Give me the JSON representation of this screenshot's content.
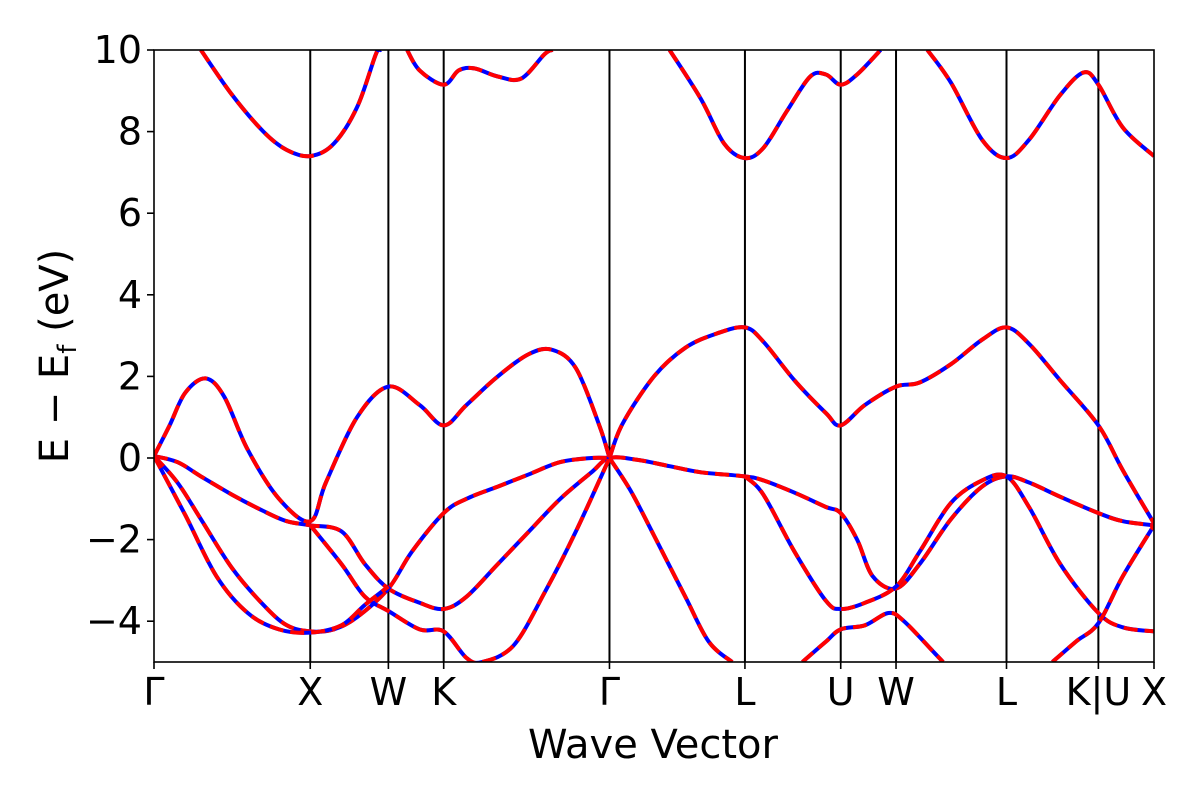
{
  "chart_data": {
    "type": "line",
    "title": "",
    "xlabel": "Wave Vector",
    "ylabel": "E − E",
    "ylabel_subscript": "f",
    "ylabel_unit": " (eV)",
    "ylim": [
      -5,
      10
    ],
    "yticks": [
      -4,
      -2,
      0,
      2,
      4,
      6,
      8,
      10
    ],
    "ytick_labels": [
      "−4",
      "−2",
      "0",
      "2",
      "4",
      "6",
      "8",
      "10"
    ],
    "xlim": [
      0,
      6.4
    ],
    "kpoints": [
      {
        "label": "Γ",
        "x": 0
      },
      {
        "label": "X",
        "x": 1.0
      },
      {
        "label": "W",
        "x": 1.5
      },
      {
        "label": "K",
        "x": 1.854
      },
      {
        "label": "Γ",
        "x": 2.915
      },
      {
        "label": "L",
        "x": 3.782
      },
      {
        "label": "U",
        "x": 4.395
      },
      {
        "label": "W",
        "x": 4.749
      },
      {
        "label": "L",
        "x": 5.456
      },
      {
        "label": "K|U",
        "x": 6.044
      },
      {
        "label": "X",
        "x": 6.4
      }
    ],
    "grid": false,
    "legend": "none",
    "colors": {
      "series_a": "#0000ff",
      "series_b": "#ff0000",
      "vlines": "#000000"
    },
    "series": [
      {
        "values": [
          [
            0,
            0.05
          ],
          [
            0.15,
            -0.1
          ],
          [
            0.3,
            -0.45
          ],
          [
            0.5,
            -0.9
          ],
          [
            0.7,
            -1.3
          ],
          [
            0.85,
            -1.55
          ],
          [
            1.0,
            -1.65
          ],
          [
            1.2,
            -1.8
          ],
          [
            1.35,
            -2.6
          ],
          [
            1.5,
            -3.2
          ],
          [
            1.7,
            -3.55
          ],
          [
            1.854,
            -3.7
          ],
          [
            2.0,
            -3.4
          ],
          [
            2.2,
            -2.6
          ],
          [
            2.4,
            -1.8
          ],
          [
            2.6,
            -1.0
          ],
          [
            2.8,
            -0.35
          ],
          [
            2.915,
            0.0
          ],
          [
            3.1,
            -0.05
          ],
          [
            3.3,
            -0.2
          ],
          [
            3.5,
            -0.35
          ],
          [
            3.782,
            -0.45
          ],
          [
            3.9,
            -0.55
          ],
          [
            4.1,
            -0.85
          ],
          [
            4.3,
            -1.2
          ],
          [
            4.395,
            -1.35
          ],
          [
            4.5,
            -2.0
          ],
          [
            4.6,
            -2.9
          ],
          [
            4.749,
            -3.2
          ],
          [
            4.9,
            -2.6
          ],
          [
            5.1,
            -1.5
          ],
          [
            5.3,
            -0.7
          ],
          [
            5.456,
            -0.45
          ],
          [
            5.6,
            -0.6
          ],
          [
            5.8,
            -0.95
          ],
          [
            6.044,
            -1.35
          ],
          [
            6.2,
            -1.55
          ],
          [
            6.4,
            -1.65
          ]
        ]
      },
      {
        "values": [
          [
            0,
            0.05
          ],
          [
            0.15,
            -0.6
          ],
          [
            0.3,
            -1.5
          ],
          [
            0.5,
            -2.7
          ],
          [
            0.7,
            -3.6
          ],
          [
            0.85,
            -4.1
          ],
          [
            1.0,
            -4.25
          ],
          [
            1.15,
            -4.2
          ],
          [
            1.3,
            -3.9
          ],
          [
            1.5,
            -3.2
          ],
          [
            1.65,
            -2.3
          ],
          [
            1.854,
            -1.35
          ],
          [
            2.0,
            -1.0
          ],
          [
            2.2,
            -0.7
          ],
          [
            2.4,
            -0.4
          ],
          [
            2.6,
            -0.1
          ],
          [
            2.8,
            0.0
          ],
          [
            2.915,
            0.0
          ]
        ]
      },
      {
        "values": [
          [
            0,
            0.05
          ],
          [
            0.1,
            0.8
          ],
          [
            0.2,
            1.6
          ],
          [
            0.33,
            1.95
          ],
          [
            0.45,
            1.5
          ],
          [
            0.6,
            0.2
          ],
          [
            0.8,
            -1.0
          ],
          [
            1.0,
            -1.55
          ],
          [
            1.1,
            -0.6
          ],
          [
            1.3,
            1.0
          ],
          [
            1.5,
            1.75
          ],
          [
            1.7,
            1.3
          ],
          [
            1.854,
            0.8
          ],
          [
            2.0,
            1.3
          ],
          [
            2.2,
            2.0
          ],
          [
            2.4,
            2.55
          ],
          [
            2.55,
            2.65
          ],
          [
            2.7,
            2.2
          ],
          [
            2.85,
            0.8
          ],
          [
            2.915,
            0.0
          ]
        ]
      },
      {
        "values": [
          [
            1.0,
            -1.65
          ],
          [
            1.2,
            -2.6
          ],
          [
            1.35,
            -3.4
          ],
          [
            1.5,
            -3.75
          ],
          [
            1.7,
            -4.2
          ],
          [
            1.854,
            -4.25
          ],
          [
            2.0,
            -4.9
          ],
          [
            2.1,
            -5.0
          ],
          [
            2.3,
            -4.6
          ],
          [
            2.5,
            -3.3
          ],
          [
            2.7,
            -1.8
          ],
          [
            2.915,
            0.0
          ]
        ]
      },
      {
        "values": [
          [
            0,
            0.05
          ],
          [
            0.2,
            -1.4
          ],
          [
            0.4,
            -2.9
          ],
          [
            0.6,
            -3.8
          ],
          [
            0.8,
            -4.2
          ],
          [
            1.0,
            -4.28
          ],
          [
            1.2,
            -4.1
          ],
          [
            1.35,
            -3.6
          ],
          [
            1.5,
            -3.15
          ]
        ]
      },
      {
        "values": [
          [
            2.915,
            0.0
          ],
          [
            3.0,
            0.85
          ],
          [
            3.2,
            2.0
          ],
          [
            3.4,
            2.7
          ],
          [
            3.6,
            3.05
          ],
          [
            3.782,
            3.2
          ],
          [
            3.9,
            2.85
          ],
          [
            4.1,
            1.9
          ],
          [
            4.3,
            1.1
          ],
          [
            4.395,
            0.8
          ],
          [
            4.55,
            1.3
          ],
          [
            4.749,
            1.75
          ],
          [
            4.9,
            1.85
          ],
          [
            5.1,
            2.3
          ],
          [
            5.3,
            2.9
          ],
          [
            5.456,
            3.2
          ],
          [
            5.6,
            2.8
          ],
          [
            5.8,
            1.9
          ],
          [
            6.044,
            0.8
          ],
          [
            6.2,
            -0.3
          ],
          [
            6.4,
            -1.6
          ]
        ]
      },
      {
        "values": [
          [
            2.915,
            0.0
          ],
          [
            3.05,
            -0.8
          ],
          [
            3.2,
            -1.9
          ],
          [
            3.4,
            -3.4
          ],
          [
            3.55,
            -4.5
          ],
          [
            3.7,
            -5.0
          ]
        ]
      },
      {
        "values": [
          [
            3.782,
            -0.45
          ],
          [
            3.9,
            -0.9
          ],
          [
            4.1,
            -2.3
          ],
          [
            4.3,
            -3.5
          ],
          [
            4.395,
            -3.7
          ],
          [
            4.55,
            -3.55
          ],
          [
            4.749,
            -3.15
          ],
          [
            4.9,
            -2.3
          ],
          [
            5.1,
            -1.1
          ],
          [
            5.3,
            -0.55
          ],
          [
            5.456,
            -0.45
          ],
          [
            5.6,
            -1.2
          ],
          [
            5.8,
            -2.6
          ],
          [
            6.044,
            -3.8
          ],
          [
            6.2,
            -4.15
          ],
          [
            6.4,
            -4.25
          ]
        ]
      },
      {
        "values": [
          [
            4.15,
            -5.0
          ],
          [
            4.3,
            -4.5
          ],
          [
            4.395,
            -4.2
          ],
          [
            4.55,
            -4.1
          ],
          [
            4.7,
            -3.8
          ],
          [
            4.8,
            -4.0
          ],
          [
            5.0,
            -4.8
          ],
          [
            5.05,
            -5.0
          ]
        ]
      },
      {
        "values": [
          [
            5.75,
            -5.0
          ],
          [
            5.9,
            -4.5
          ],
          [
            6.044,
            -4.05
          ],
          [
            6.2,
            -2.9
          ],
          [
            6.4,
            -1.65
          ]
        ]
      },
      {
        "values": [
          [
            0.3,
            10.0
          ],
          [
            0.5,
            8.9
          ],
          [
            0.7,
            8.0
          ],
          [
            0.85,
            7.55
          ],
          [
            1.0,
            7.4
          ],
          [
            1.15,
            7.7
          ],
          [
            1.3,
            8.6
          ],
          [
            1.42,
            9.9
          ],
          [
            1.45,
            10.0
          ]
        ]
      },
      {
        "values": [
          [
            1.62,
            10.0
          ],
          [
            1.7,
            9.5
          ],
          [
            1.854,
            9.15
          ],
          [
            1.95,
            9.5
          ],
          [
            2.05,
            9.55
          ],
          [
            2.2,
            9.35
          ],
          [
            2.35,
            9.3
          ],
          [
            2.5,
            9.9
          ],
          [
            2.55,
            10.0
          ]
        ]
      },
      {
        "values": [
          [
            3.3,
            10.0
          ],
          [
            3.5,
            8.8
          ],
          [
            3.65,
            7.7
          ],
          [
            3.782,
            7.35
          ],
          [
            3.9,
            7.6
          ],
          [
            4.05,
            8.5
          ],
          [
            4.2,
            9.35
          ],
          [
            4.3,
            9.4
          ],
          [
            4.395,
            9.15
          ],
          [
            4.5,
            9.4
          ],
          [
            4.65,
            10.0
          ]
        ]
      },
      {
        "values": [
          [
            4.95,
            10.0
          ],
          [
            5.1,
            9.2
          ],
          [
            5.3,
            7.8
          ],
          [
            5.456,
            7.35
          ],
          [
            5.6,
            7.8
          ],
          [
            5.8,
            8.9
          ],
          [
            5.95,
            9.45
          ],
          [
            6.044,
            9.15
          ],
          [
            6.2,
            8.1
          ],
          [
            6.4,
            7.4
          ]
        ]
      }
    ]
  }
}
